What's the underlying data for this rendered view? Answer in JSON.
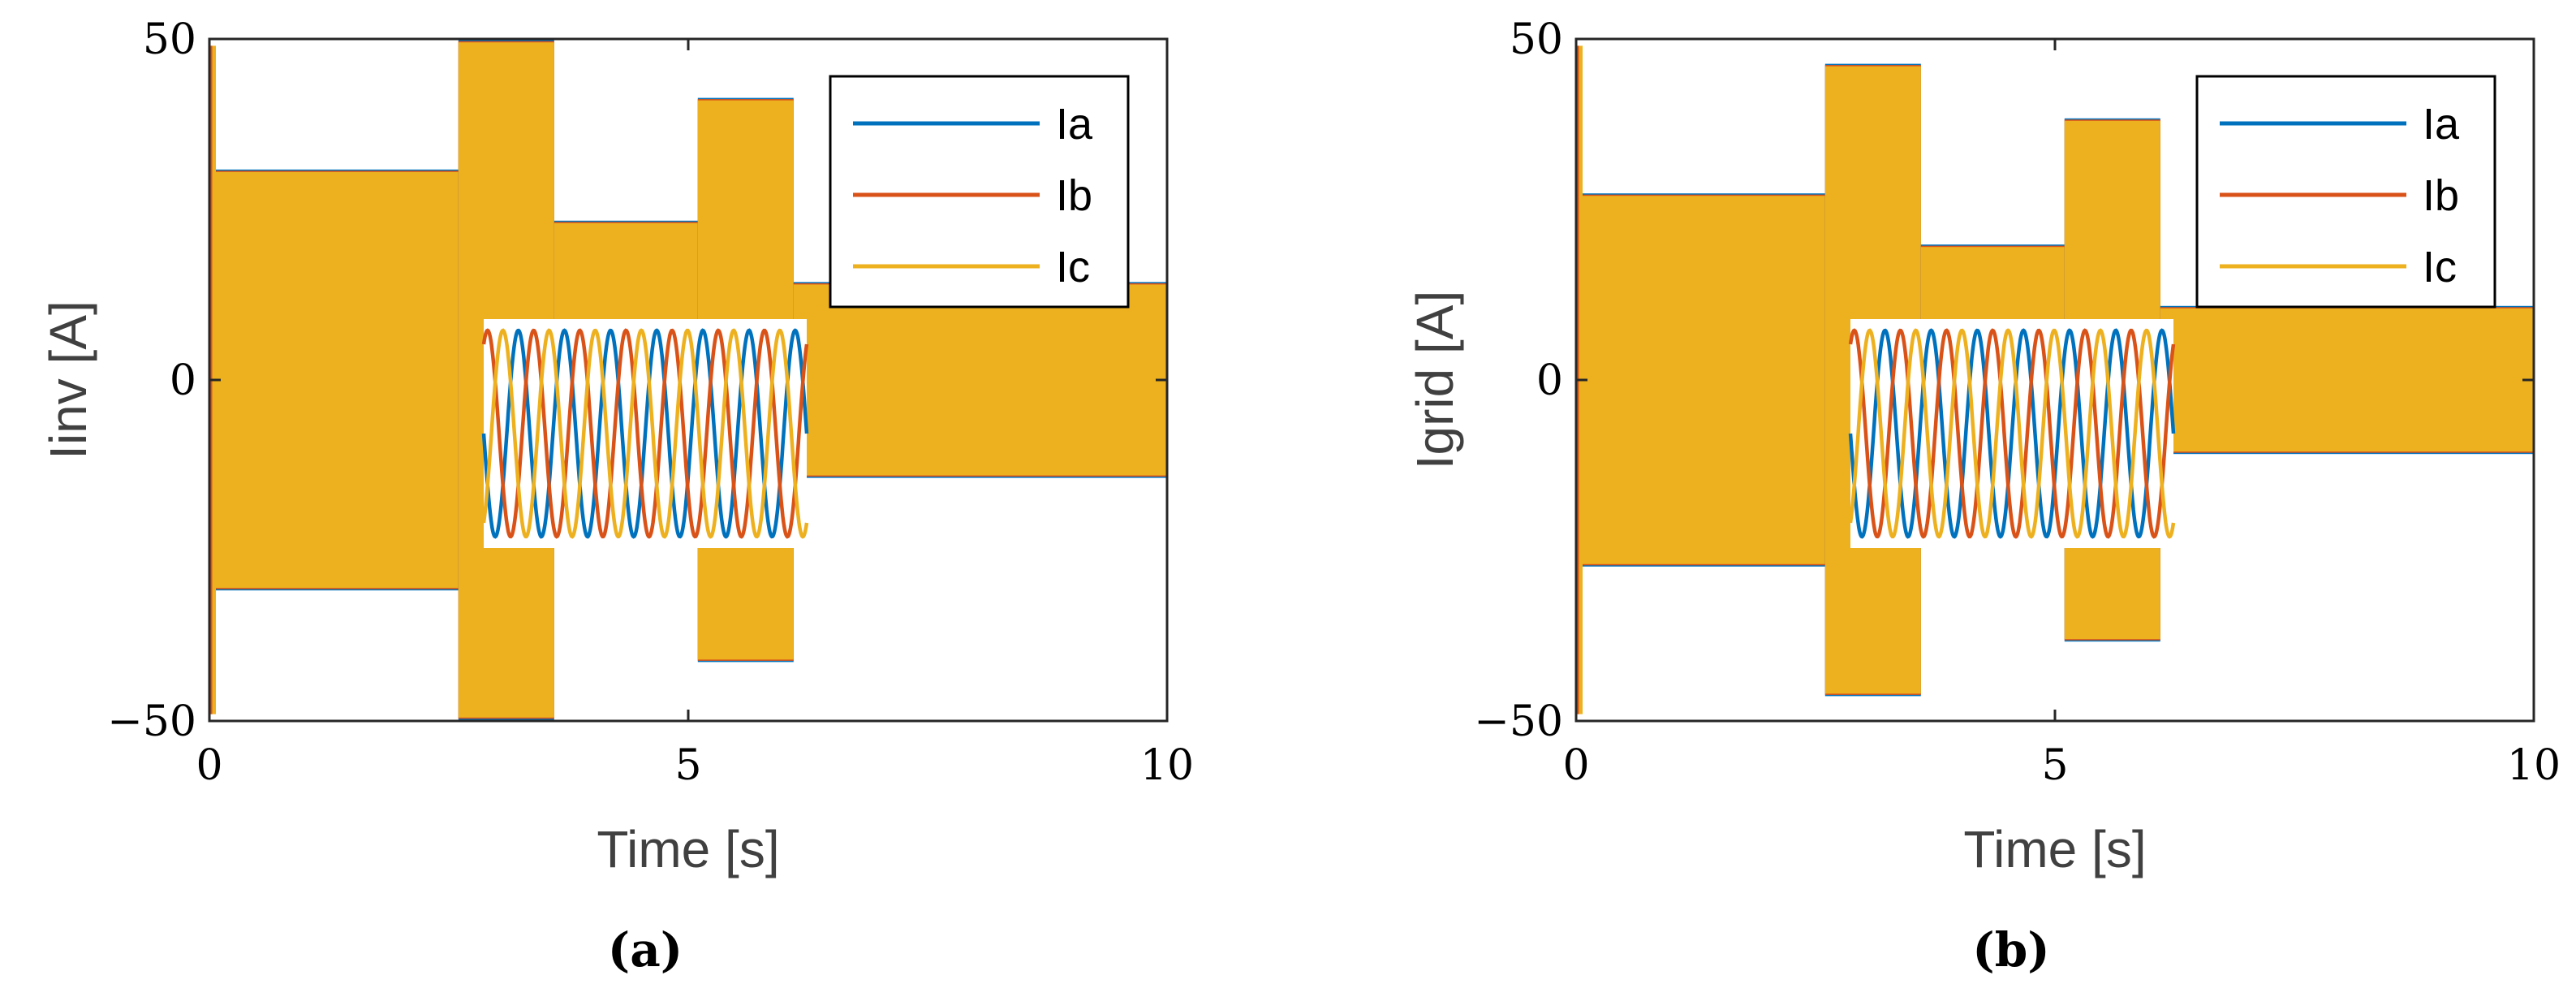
{
  "colors": {
    "Ia": "#0072BD",
    "Ib": "#D95319",
    "Ic": "#EDB120",
    "axis": "#262626",
    "label": "#404040"
  },
  "chart_data": [
    {
      "type": "line",
      "panel_label": "(a)",
      "xlabel": "Time [s]",
      "ylabel": "Iinv [A]",
      "xlim": [
        0,
        10
      ],
      "ylim": [
        -50,
        50
      ],
      "xticks": [
        0,
        5,
        10
      ],
      "yticks": [
        50,
        0,
        -50
      ],
      "xtick_labels": [
        "0",
        "5",
        "10"
      ],
      "ytick_labels": [
        "50",
        "0",
        "−50"
      ],
      "grid": false,
      "legend": {
        "placement": "top-right",
        "entries": [
          "Ia",
          "Ib",
          "Ic"
        ]
      },
      "series": [
        {
          "name": "Ia",
          "color_key": "Ia"
        },
        {
          "name": "Ib",
          "color_key": "Ib"
        },
        {
          "name": "Ic",
          "color_key": "Ic"
        }
      ],
      "segments": [
        {
          "t0": 0.0,
          "t1": 2.6,
          "amplitude": 30.5
        },
        {
          "t0": 2.6,
          "t1": 3.6,
          "amplitude": 49.5
        },
        {
          "t0": 3.6,
          "t1": 5.1,
          "amplitude": 23.0
        },
        {
          "t0": 5.1,
          "t1": 6.1,
          "amplitude": 41.0
        },
        {
          "t0": 6.1,
          "t1": 10.0,
          "amplitude": 14.0
        }
      ],
      "envelope_note": "three-phase 50 Hz currents; amplitude per segment",
      "inset": {
        "type": "line",
        "description": "zoomed three-phase sinusoids",
        "cycles": 7
      }
    },
    {
      "type": "line",
      "panel_label": "(b)",
      "xlabel": "Time [s]",
      "ylabel": "Igrid [A]",
      "xlim": [
        0,
        10
      ],
      "ylim": [
        -50,
        50
      ],
      "xticks": [
        0,
        5,
        10
      ],
      "yticks": [
        50,
        0,
        -50
      ],
      "xtick_labels": [
        "0",
        "5",
        "10"
      ],
      "ytick_labels": [
        "50",
        "0",
        "−50"
      ],
      "grid": false,
      "legend": {
        "placement": "top-right",
        "entries": [
          "Ia",
          "Ib",
          "Ic"
        ]
      },
      "series": [
        {
          "name": "Ia",
          "color_key": "Ia"
        },
        {
          "name": "Ib",
          "color_key": "Ib"
        },
        {
          "name": "Ic",
          "color_key": "Ic"
        }
      ],
      "segments": [
        {
          "t0": 0.0,
          "t1": 2.6,
          "amplitude": 27.0
        },
        {
          "t0": 2.6,
          "t1": 3.6,
          "amplitude": 46.0
        },
        {
          "t0": 3.6,
          "t1": 5.1,
          "amplitude": 19.5
        },
        {
          "t0": 5.1,
          "t1": 6.1,
          "amplitude": 38.0
        },
        {
          "t0": 6.1,
          "t1": 10.0,
          "amplitude": 10.5
        }
      ],
      "envelope_note": "three-phase 50 Hz currents; amplitude per segment",
      "inset": {
        "type": "line",
        "description": "zoomed three-phase sinusoids",
        "cycles": 7
      }
    }
  ]
}
